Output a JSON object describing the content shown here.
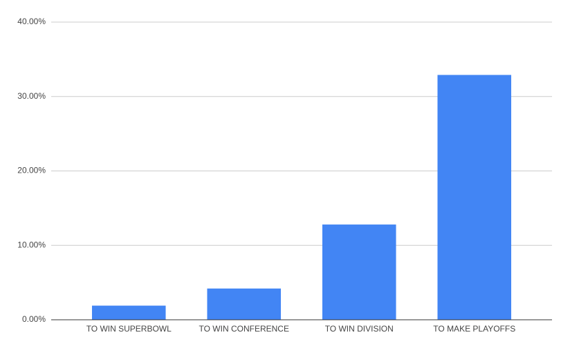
{
  "chart_data": {
    "type": "bar",
    "categories": [
      "TO WIN SUPERBOWL",
      "TO WIN CONFERENCE",
      "TO WIN DIVISION",
      "TO MAKE PLAYOFFS"
    ],
    "values": [
      1.9,
      4.2,
      12.8,
      32.9
    ],
    "color": "#4285f4",
    "ylim": [
      0,
      40
    ],
    "yticks": [
      {
        "value": 0,
        "label": "0.00%"
      },
      {
        "value": 10,
        "label": "10.00%"
      },
      {
        "value": 20,
        "label": "20.00%"
      },
      {
        "value": 30,
        "label": "30.00%"
      },
      {
        "value": 40,
        "label": "40.00%"
      }
    ],
    "grid": true
  }
}
